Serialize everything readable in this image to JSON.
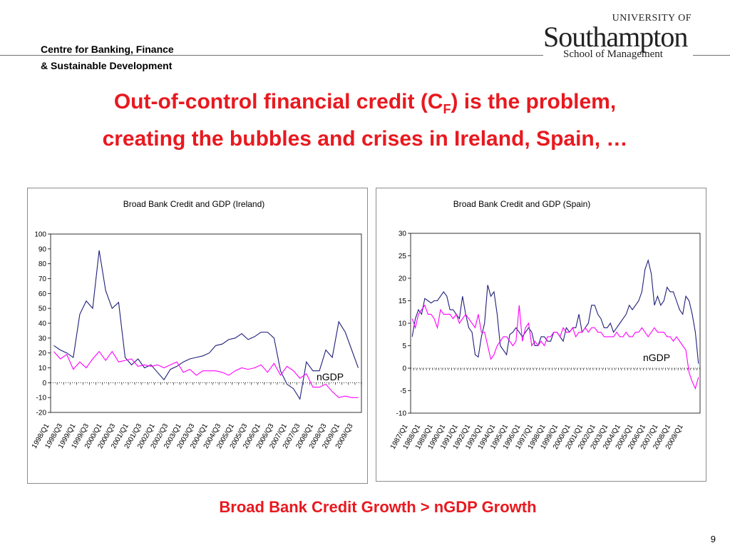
{
  "header": {
    "centre_line1": "Centre for Banking, Finance",
    "centre_line2": "& Sustainable Development",
    "logo_university_of": "UNIVERSITY OF",
    "logo_southampton": "Southampton",
    "logo_school": "School of Management"
  },
  "title": {
    "line1_before": "Out-of-control financial credit (C",
    "line1_sub": "F",
    "line1_after": ") is the problem,",
    "line2": "creating the bubbles and crises in Ireland, Spain, …"
  },
  "caption": "Broad Bank Credit Growth > nGDP Growth",
  "page_number": "9",
  "colors": {
    "title_red": "#e8191f",
    "credit_line": "#1f1f7a",
    "gdp_line": "#ff00ff"
  },
  "chart_data": [
    {
      "type": "line",
      "title": "Broad Bank Credit and GDP (Ireland)",
      "ylim": [
        -20,
        100
      ],
      "yticks": [
        "100",
        "90",
        "80",
        "70",
        "60",
        "50",
        "40",
        "30",
        "20",
        "10",
        "0",
        "-10",
        "-20"
      ],
      "xtick_labels": [
        "1998/Q1",
        "1998/Q3",
        "1999/Q1",
        "1999/Q3",
        "2000/Q1",
        "2000/Q3",
        "2001/Q1",
        "2001/Q3",
        "2002/Q1",
        "2002/Q3",
        "2003/Q1",
        "2003/Q3",
        "2004/Q1",
        "2004/Q3",
        "2005/Q1",
        "2005/Q3",
        "2006/Q1",
        "2006/Q3",
        "2007/Q1",
        "2007/Q3",
        "2008/Q1",
        "2008/Q3",
        "2009/Q1",
        "2009/Q3"
      ],
      "annotation": "nGDP",
      "series": [
        {
          "values": [
            25,
            22,
            20,
            17,
            46,
            55,
            50,
            89,
            62,
            50,
            54,
            17,
            12,
            16,
            10,
            12,
            7,
            2,
            9,
            11,
            14,
            16,
            17,
            18,
            20,
            25,
            26,
            29,
            30,
            33,
            29,
            31,
            34,
            34,
            30,
            8,
            -1,
            -4,
            -11,
            14,
            8,
            8,
            22,
            17,
            41,
            34,
            22,
            10
          ]
        },
        {
          "values": [
            21,
            16,
            19,
            9,
            14,
            10,
            16,
            21,
            15,
            21,
            14,
            15,
            16,
            11,
            12,
            11,
            12,
            10,
            12,
            14,
            7,
            9,
            5,
            8,
            8,
            8,
            7,
            5,
            8,
            10,
            9,
            10,
            12,
            7,
            13,
            5,
            11,
            8,
            3,
            6,
            -3,
            -3,
            -1,
            -6,
            -10,
            -9,
            -10,
            -10
          ]
        }
      ]
    },
    {
      "type": "line",
      "title": "Broad Bank Credit and GDP (Spain)",
      "ylim": [
        -10,
        30
      ],
      "yticks": [
        "30",
        "25",
        "20",
        "15",
        "10",
        "5",
        "0",
        "-5",
        "-10"
      ],
      "xtick_labels": [
        "1987/Q1",
        "1988/Q1",
        "1989/Q1",
        "1990/Q1",
        "1991/Q1",
        "1992/Q1",
        "1993/Q1",
        "1994/Q1",
        "1995/Q1",
        "1996/Q1",
        "1997/Q1",
        "1998/Q1",
        "1999/Q1",
        "2000/Q1",
        "2001/Q1",
        "2002/Q1",
        "2003/Q1",
        "2004/Q1",
        "2005/Q1",
        "2006/Q1",
        "2007/Q1",
        "2008/Q1",
        "2009/Q1"
      ],
      "annotation": "nGDP",
      "series": [
        {
          "values": [
            7,
            11,
            13,
            12,
            15.5,
            15,
            14.5,
            15,
            15,
            16,
            17,
            16,
            13,
            13,
            12,
            11,
            16,
            12,
            9,
            8,
            3,
            2.5,
            7,
            10,
            18.5,
            16,
            17,
            12,
            5,
            4,
            3,
            7.5,
            8,
            9,
            8,
            7,
            8,
            9,
            8,
            5,
            5,
            7,
            7,
            6,
            6,
            8,
            8,
            7,
            6,
            9,
            8,
            9,
            9,
            12,
            8,
            9,
            10,
            14,
            14,
            12,
            11,
            9,
            9,
            10,
            8,
            9,
            10,
            11,
            12,
            14,
            13,
            14,
            15,
            17,
            22,
            24,
            21,
            14,
            16,
            14,
            15,
            18,
            17,
            17,
            15,
            13,
            12,
            16,
            15,
            12,
            8,
            1
          ]
        },
        {
          "values": [
            11,
            9,
            12,
            13,
            14,
            12,
            12,
            11,
            9,
            13,
            12,
            12,
            12,
            11,
            12,
            10,
            11,
            12,
            11,
            10,
            9,
            12,
            8,
            8,
            5,
            2,
            3,
            5,
            6,
            7,
            7,
            6,
            5,
            6,
            14,
            6,
            9,
            10,
            5,
            6,
            5,
            6,
            5,
            7,
            7,
            8,
            8,
            7,
            9,
            8,
            8,
            9,
            7,
            8,
            8,
            9,
            8,
            9,
            9,
            8,
            8,
            7,
            7,
            7,
            7,
            8,
            7,
            7,
            8,
            7,
            7,
            8,
            8,
            9,
            8,
            7,
            8,
            9,
            8,
            8,
            8,
            7,
            7,
            6,
            7,
            6,
            5,
            4,
            -1,
            -3,
            -4.5,
            -2
          ]
        }
      ]
    }
  ]
}
